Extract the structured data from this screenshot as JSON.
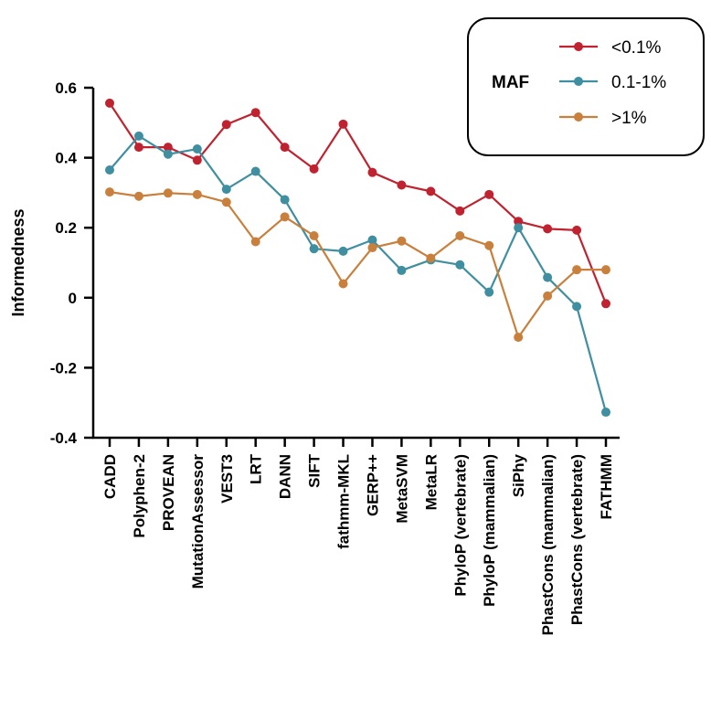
{
  "chart_data": {
    "type": "line",
    "categories": [
      "CADD",
      "Polyphen-2",
      "PROVEAN",
      "MutationAssessor",
      "VEST3",
      "LRT",
      "DANN",
      "SIFT",
      "fathmm-MKL",
      "GERP++",
      "MetaSVM",
      "MetaLR",
      "PhyloP (vertebrate)",
      "PhyloP (mammalian)",
      "SiPhy",
      "PhastCons (mammalian)",
      "PhastCons (vertebrate)",
      "FATHMM"
    ],
    "series": [
      {
        "name": "<0.1%",
        "color": "#c0222f",
        "values": [
          0.556,
          0.43,
          0.43,
          0.393,
          0.495,
          0.529,
          0.43,
          0.368,
          0.496,
          0.358,
          0.322,
          0.304,
          0.248,
          0.295,
          0.218,
          0.197,
          0.193,
          -0.017
        ]
      },
      {
        "name": "0.1-1%",
        "color": "#3f8fa0",
        "values": [
          0.365,
          0.462,
          0.41,
          0.425,
          0.31,
          0.361,
          0.28,
          0.14,
          0.133,
          0.165,
          0.078,
          0.108,
          0.094,
          0.016,
          0.2,
          0.058,
          -0.025,
          -0.327
        ]
      },
      {
        "name": ">1%",
        "color": "#c8803c",
        "values": [
          0.302,
          0.29,
          0.299,
          0.295,
          0.273,
          0.16,
          0.231,
          0.177,
          0.04,
          0.143,
          0.162,
          0.113,
          0.177,
          0.149,
          -0.113,
          0.005,
          0.08,
          0.08
        ]
      }
    ],
    "ylabel": "Informedness",
    "xlabel": "",
    "ylim": [
      -0.4,
      0.6
    ],
    "yticks": [
      -0.4,
      -0.2,
      0,
      0.2,
      0.4,
      0.6
    ],
    "ytick_labels": [
      "-0.4",
      "-0.2",
      "0",
      "0.2",
      "0.4",
      "0.6"
    ],
    "grid": false,
    "legend": {
      "title": "MAF",
      "position": "top-right"
    }
  }
}
